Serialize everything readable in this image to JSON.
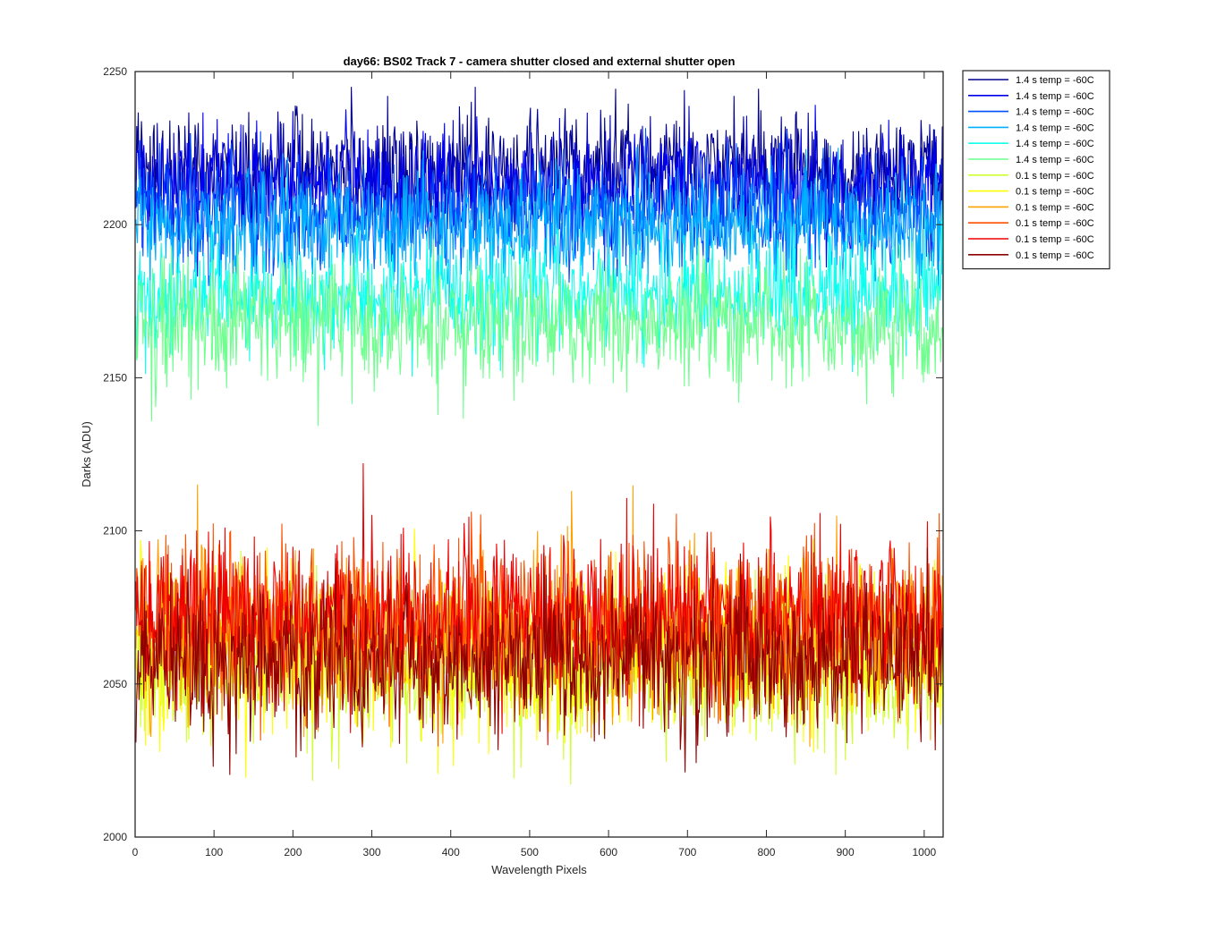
{
  "chart_data": {
    "type": "line",
    "title": "day66: BS02  Track 7 - camera shutter closed and external shutter open",
    "xlabel": "Wavelength Pixels",
    "ylabel": "Darks (ADU)",
    "xlim": [
      0,
      1024
    ],
    "ylim": [
      2000,
      2250
    ],
    "xticks": [
      0,
      100,
      200,
      300,
      400,
      500,
      600,
      700,
      800,
      900,
      1000
    ],
    "yticks": [
      2000,
      2050,
      2100,
      2150,
      2200,
      2250
    ],
    "grid": false,
    "legend_position": "outside-top-right",
    "x_range": [
      1,
      1024
    ],
    "series": [
      {
        "name": "1.4 s temp = -60C",
        "color": "#00008f",
        "mean": 2218,
        "spread": 9,
        "min": 2187,
        "max": 2245
      },
      {
        "name": "1.4 s temp = -60C",
        "color": "#0000ef",
        "mean": 2213,
        "spread": 10,
        "min": 2183,
        "max": 2249
      },
      {
        "name": "1.4 s temp = -60C",
        "color": "#0050ff",
        "mean": 2204,
        "spread": 9,
        "min": 2180,
        "max": 2238
      },
      {
        "name": "1.4 s temp = -60C",
        "color": "#00afff",
        "mean": 2200,
        "spread": 9,
        "min": 2172,
        "max": 2232
      },
      {
        "name": "1.4 s temp = -60C",
        "color": "#10ffef",
        "mean": 2177,
        "spread": 9,
        "min": 2136,
        "max": 2208
      },
      {
        "name": "1.4 s temp = -60C",
        "color": "#6fff8f",
        "mean": 2168,
        "spread": 10,
        "min": 2121,
        "max": 2200
      },
      {
        "name": "0.1 s temp = -60C",
        "color": "#cfff30",
        "mean": 2056,
        "spread": 12,
        "min": 2017,
        "max": 2112
      },
      {
        "name": "0.1 s temp = -60C",
        "color": "#ffff00",
        "mean": 2060,
        "spread": 13,
        "min": 2016,
        "max": 2132
      },
      {
        "name": "0.1 s temp = -60C",
        "color": "#ffa000",
        "mean": 2066,
        "spread": 13,
        "min": 2022,
        "max": 2130
      },
      {
        "name": "0.1 s temp = -60C",
        "color": "#ff5000",
        "mean": 2070,
        "spread": 13,
        "min": 2028,
        "max": 2137
      },
      {
        "name": "0.1 s temp = -60C",
        "color": "#ef0000",
        "mean": 2072,
        "spread": 13,
        "min": 2028,
        "max": 2131
      },
      {
        "name": "0.1 s temp = -60C",
        "color": "#8f0000",
        "mean": 2058,
        "spread": 12,
        "min": 2008,
        "max": 2115
      }
    ]
  }
}
